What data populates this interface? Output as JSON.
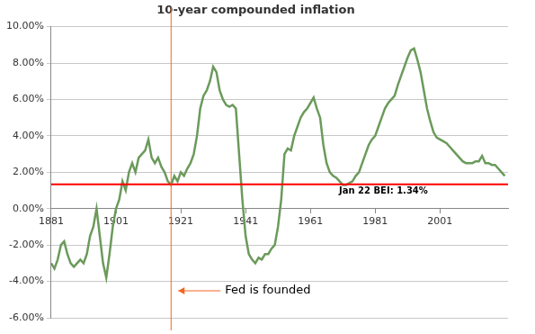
{
  "chart_data": {
    "type": "line",
    "title": "10-year compounded inflation",
    "color": "#6b9a5b",
    "x": [
      1881,
      1882,
      1883,
      1884,
      1885,
      1886,
      1887,
      1888,
      1889,
      1890,
      1891,
      1892,
      1893,
      1894,
      1895,
      1896,
      1897,
      1898,
      1899,
      1900,
      1901,
      1902,
      1903,
      1904,
      1905,
      1906,
      1907,
      1908,
      1909,
      1910,
      1911,
      1912,
      1913,
      1914,
      1915,
      1916,
      1917,
      1918,
      1919,
      1920,
      1921,
      1922,
      1923,
      1924,
      1925,
      1926,
      1927,
      1928,
      1929,
      1930,
      1931,
      1932,
      1933,
      1934,
      1935,
      1936,
      1937,
      1938,
      1939,
      1940,
      1941,
      1942,
      1943,
      1944,
      1945,
      1946,
      1947,
      1948,
      1949,
      1950,
      1951,
      1952,
      1953,
      1954,
      1955,
      1956,
      1957,
      1958,
      1959,
      1960,
      1961,
      1962,
      1963,
      1964,
      1965,
      1966,
      1967,
      1968,
      1969,
      1970,
      1971,
      1972,
      1973,
      1974,
      1975,
      1976,
      1977,
      1978,
      1979,
      1980,
      1981,
      1982,
      1983,
      1984,
      1985,
      1986,
      1987,
      1988,
      1989,
      1990,
      1991,
      1992,
      1993,
      1994,
      1995,
      1996,
      1997,
      1998,
      1999,
      2000,
      2001,
      2002,
      2003,
      2004,
      2005,
      2006,
      2007,
      2008,
      2009,
      2010,
      2011,
      2012,
      2013,
      2014,
      2015,
      2016,
      2017,
      2018,
      2019,
      2020,
      2021
    ],
    "values": [
      -3.0,
      -3.3,
      -2.8,
      -2.0,
      -1.8,
      -2.5,
      -3.0,
      -3.2,
      -3.0,
      -2.8,
      -3.0,
      -2.5,
      -1.5,
      -1.0,
      0.0,
      -1.5,
      -3.0,
      -3.8,
      -2.5,
      -1.0,
      0.0,
      0.5,
      1.5,
      1.0,
      2.0,
      2.5,
      2.0,
      2.8,
      3.0,
      3.2,
      3.8,
      2.8,
      2.5,
      2.8,
      2.3,
      2.0,
      1.5,
      1.3,
      1.8,
      1.5,
      2.0,
      1.8,
      2.2,
      2.5,
      3.0,
      4.0,
      5.5,
      6.2,
      6.5,
      7.0,
      7.8,
      7.5,
      6.5,
      6.0,
      5.7,
      5.6,
      5.7,
      5.5,
      3.0,
      0.5,
      -1.5,
      -2.5,
      -2.8,
      -3.0,
      -2.7,
      -2.8,
      -2.5,
      -2.5,
      -2.2,
      -2.0,
      -1.0,
      0.5,
      3.0,
      3.3,
      3.2,
      4.0,
      4.5,
      5.0,
      5.3,
      5.5,
      5.8,
      6.1,
      5.5,
      5.0,
      3.5,
      2.5,
      2.0,
      1.8,
      1.7,
      1.5,
      1.3,
      1.3,
      1.4,
      1.5,
      1.8,
      2.0,
      2.5,
      3.0,
      3.5,
      3.8,
      4.0,
      4.5,
      5.0,
      5.5,
      5.8,
      6.0,
      6.2,
      6.8,
      7.3,
      7.8,
      8.3,
      8.7,
      8.8,
      8.2,
      7.5,
      6.5,
      5.5,
      4.8,
      4.2,
      3.9,
      3.8,
      3.7,
      3.6,
      3.4,
      3.2,
      3.0,
      2.8,
      2.6,
      2.5,
      2.5,
      2.5,
      2.6,
      2.6,
      2.9,
      2.5,
      2.5,
      2.4,
      2.4,
      2.2,
      2.0,
      1.8
    ],
    "xlim": [
      1881,
      2022
    ],
    "xticks": [
      1881,
      1901,
      1921,
      1941,
      1961,
      1981,
      2001
    ],
    "ylim": [
      -6,
      10
    ],
    "yticks": [
      {
        "value": -6,
        "label": "-6.00%"
      },
      {
        "value": -4,
        "label": "-4.00%"
      },
      {
        "value": -2,
        "label": "-2.00%"
      },
      {
        "value": 0,
        "label": "0.00%"
      },
      {
        "value": 2,
        "label": "2.00%"
      },
      {
        "value": 4,
        "label": "4.00%"
      },
      {
        "value": 6,
        "label": "6.00%"
      },
      {
        "value": 8,
        "label": "8.00%"
      },
      {
        "value": 10,
        "label": "10.00%"
      }
    ],
    "grid": true,
    "annotations": [
      {
        "type": "hline",
        "y": 1.34,
        "text": "Jan 22 BEI: 1.34%",
        "color": "#ff0000"
      },
      {
        "type": "vline",
        "x": 1918,
        "text": "Fed is founded",
        "color": "#f26522"
      }
    ]
  }
}
